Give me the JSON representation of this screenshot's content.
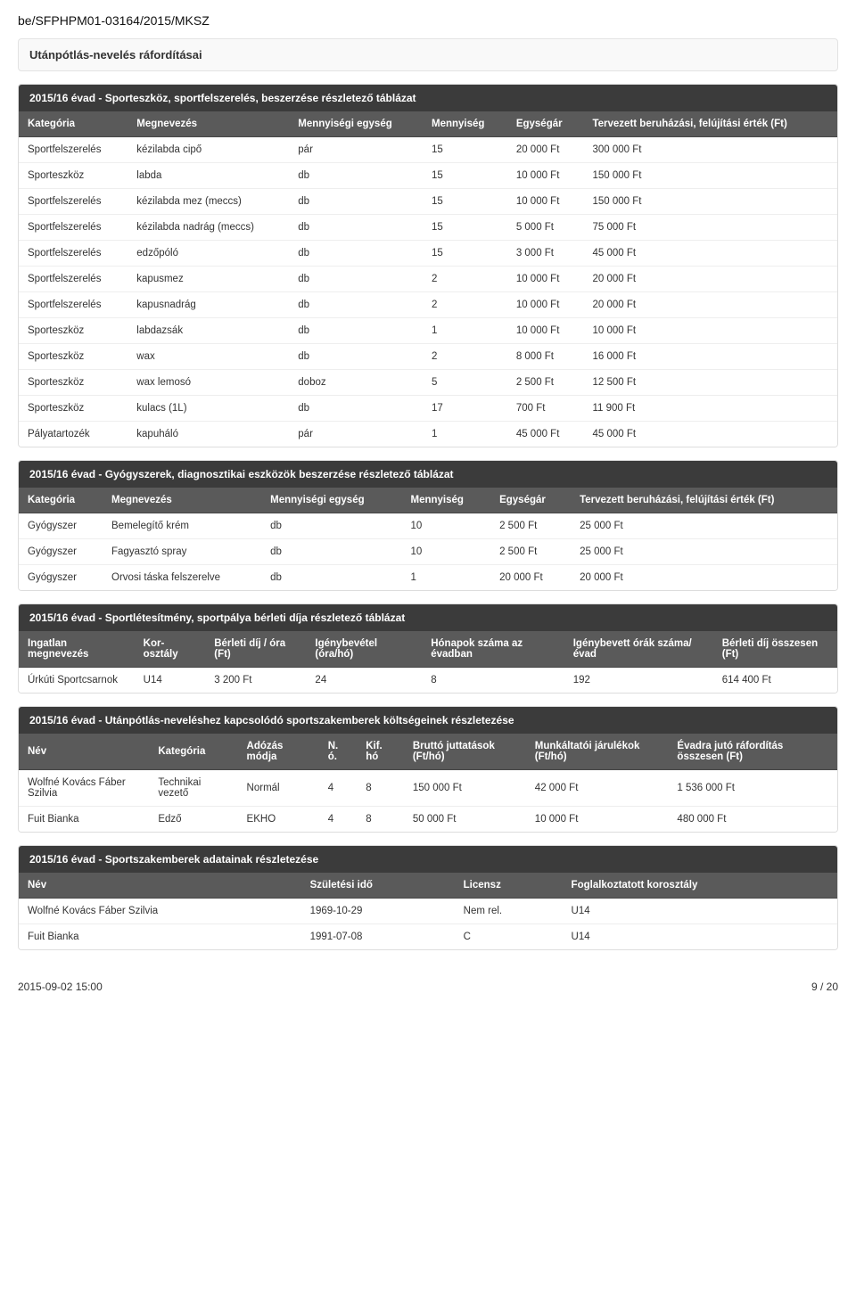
{
  "doc_id": "be/SFPHPM01-03164/2015/MKSZ",
  "panel_title": "Utánpótlás-nevelés ráfordításai",
  "table1": {
    "title": "2015/16 évad - Sporteszköz, sportfelszerelés, beszerzése részletező táblázat",
    "headers": [
      "Kategória",
      "Megnevezés",
      "Mennyiségi egység",
      "Mennyiség",
      "Egységár",
      "Tervezett beruházási, felújítási érték (Ft)"
    ],
    "rows": [
      [
        "Sportfelszerelés",
        "kézilabda cipő",
        "pár",
        "15",
        "20 000 Ft",
        "300 000 Ft"
      ],
      [
        "Sporteszköz",
        "labda",
        "db",
        "15",
        "10 000 Ft",
        "150 000 Ft"
      ],
      [
        "Sportfelszerelés",
        "kézilabda mez (meccs)",
        "db",
        "15",
        "10 000 Ft",
        "150 000 Ft"
      ],
      [
        "Sportfelszerelés",
        "kézilabda nadrág (meccs)",
        "db",
        "15",
        "5 000 Ft",
        "75 000 Ft"
      ],
      [
        "Sportfelszerelés",
        "edzőpóló",
        "db",
        "15",
        "3 000 Ft",
        "45 000 Ft"
      ],
      [
        "Sportfelszerelés",
        "kapusmez",
        "db",
        "2",
        "10 000 Ft",
        "20 000 Ft"
      ],
      [
        "Sportfelszerelés",
        "kapusnadrág",
        "db",
        "2",
        "10 000 Ft",
        "20 000 Ft"
      ],
      [
        "Sporteszköz",
        "labdazsák",
        "db",
        "1",
        "10 000 Ft",
        "10 000 Ft"
      ],
      [
        "Sporteszköz",
        "wax",
        "db",
        "2",
        "8 000 Ft",
        "16 000 Ft"
      ],
      [
        "Sporteszköz",
        "wax lemosó",
        "doboz",
        "5",
        "2 500 Ft",
        "12 500 Ft"
      ],
      [
        "Sporteszköz",
        "kulacs (1L)",
        "db",
        "17",
        "700 Ft",
        "11 900 Ft"
      ],
      [
        "Pályatartozék",
        "kapuháló",
        "pár",
        "1",
        "45 000 Ft",
        "45 000 Ft"
      ]
    ]
  },
  "table2": {
    "title": "2015/16 évad - Gyógyszerek, diagnosztikai eszközök beszerzése részletező táblázat",
    "headers": [
      "Kategória",
      "Megnevezés",
      "Mennyiségi egység",
      "Mennyiség",
      "Egységár",
      "Tervezett beruházási, felújítási érték (Ft)"
    ],
    "rows": [
      [
        "Gyógyszer",
        "Bemelegítő krém",
        "db",
        "10",
        "2 500 Ft",
        "25 000 Ft"
      ],
      [
        "Gyógyszer",
        "Fagyasztó spray",
        "db",
        "10",
        "2 500 Ft",
        "25 000 Ft"
      ],
      [
        "Gyógyszer",
        "Orvosi táska felszerelve",
        "db",
        "1",
        "20 000 Ft",
        "20 000 Ft"
      ]
    ]
  },
  "table3": {
    "title": "2015/16 évad - Sportlétesítmény, sportpálya bérleti díja részletező táblázat",
    "headers": [
      "Ingatlan megnevezés",
      "Kor-osztály",
      "Bérleti díj / óra (Ft)",
      "Igénybevétel (óra/hó)",
      "Hónapok száma az évadban",
      "Igénybevett órák száma/évad",
      "Bérleti díj összesen (Ft)"
    ],
    "rows": [
      [
        "Úrkúti Sportcsarnok",
        "U14",
        "3 200 Ft",
        "24",
        "8",
        "192",
        "614 400 Ft"
      ]
    ]
  },
  "table4": {
    "title": "2015/16 évad - Utánpótlás-neveléshez kapcsolódó sportszakemberek költségeinek részletezése",
    "headers": [
      "Név",
      "Kategória",
      "Adózás módja",
      "N. ó.",
      "Kif. hó",
      "Bruttó juttatások (Ft/hó)",
      "Munkáltatói járulékok (Ft/hó)",
      "Évadra jutó ráfordítás összesen (Ft)"
    ],
    "rows": [
      [
        "Wolfné Kovács Fáber Szilvia",
        "Technikai vezető",
        "Normál",
        "4",
        "8",
        "150 000 Ft",
        "42 000 Ft",
        "1 536 000 Ft"
      ],
      [
        "Fuit Bianka",
        "Edző",
        "EKHO",
        "4",
        "8",
        "50 000 Ft",
        "10 000 Ft",
        "480 000 Ft"
      ]
    ]
  },
  "table5": {
    "title": "2015/16 évad - Sportszakemberek adatainak részletezése",
    "headers": [
      "Név",
      "Születési idő",
      "Licensz",
      "Foglalkoztatott korosztály"
    ],
    "rows": [
      [
        "Wolfné Kovács Fáber Szilvia",
        "1969-10-29",
        "Nem rel.",
        "U14"
      ],
      [
        "Fuit Bianka",
        "1991-07-08",
        "C",
        "U14"
      ]
    ]
  },
  "footer": {
    "left": "2015-09-02 15:00",
    "right": "9 / 20"
  },
  "colors": {
    "table_title_bg": "#3b3b3b",
    "thead_bg": "#5a5a5a",
    "border": "#dddddd",
    "row_border": "#eeeeee",
    "panel_bg": "#f9f9f9",
    "panel_border": "#e3e3e3",
    "text": "#333333",
    "white": "#ffffff"
  }
}
